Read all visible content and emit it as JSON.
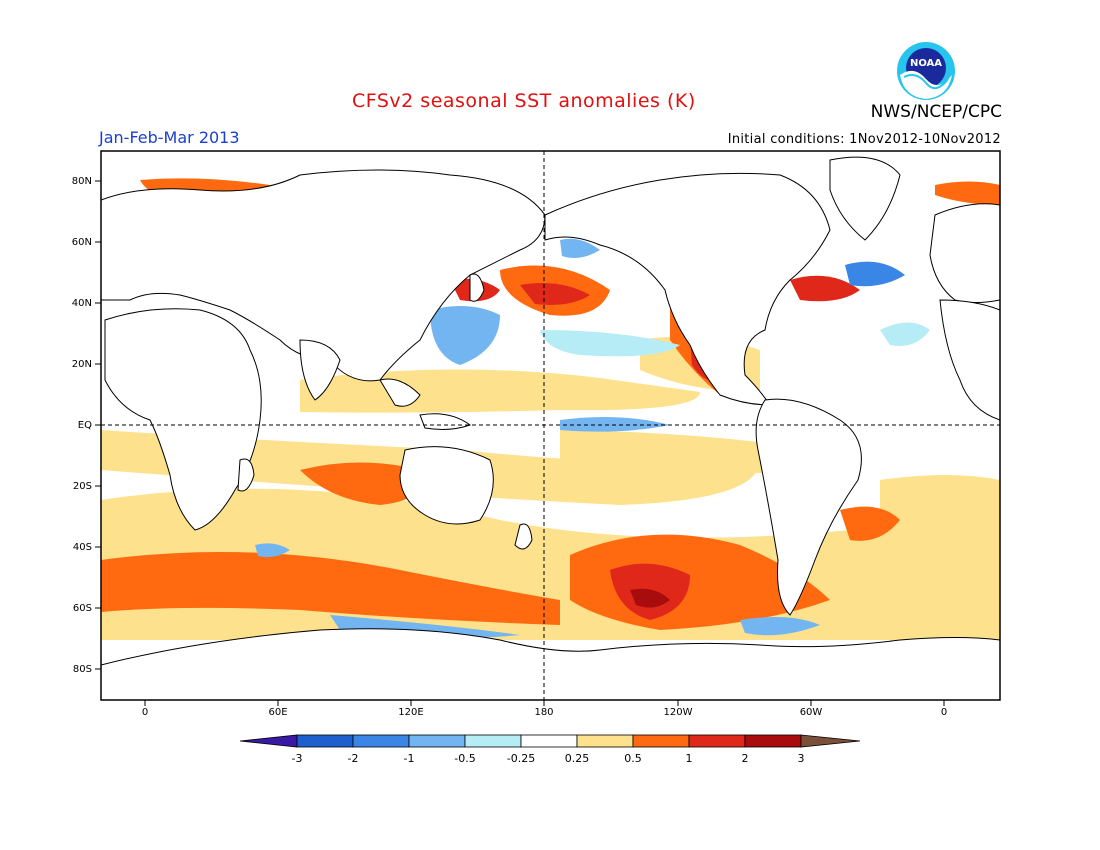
{
  "header": {
    "title": "CFSv2 seasonal SST anomalies (K)",
    "period": "Jan-Feb-Mar 2013",
    "initial_conditions": "Initial conditions: 1Nov2012-10Nov2012",
    "organization": "NWS/NCEP/CPC",
    "logo_text": "NOAA"
  },
  "map": {
    "lat_ticks": [
      "80N",
      "60N",
      "40N",
      "20N",
      "EQ",
      "20S",
      "40S",
      "60S",
      "80S"
    ],
    "lon_ticks": [
      "0",
      "60E",
      "120E",
      "180",
      "120W",
      "60W",
      "0"
    ]
  },
  "colorbar": {
    "labels": [
      "-3",
      "-2",
      "-1",
      "-0.5",
      "-0.25",
      "0.25",
      "0.5",
      "1",
      "2",
      "3"
    ],
    "colors": [
      "#3a1aa5",
      "#1e5fd0",
      "#3a86e6",
      "#73b5f0",
      "#b6ecf5",
      "#ffffff",
      "#fde18c",
      "#ff6a10",
      "#e0281a",
      "#a80c0c",
      "#7a5038"
    ]
  }
}
